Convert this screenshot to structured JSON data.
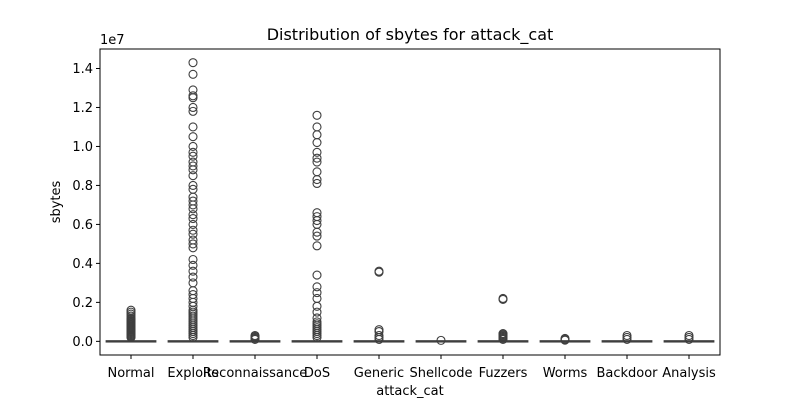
{
  "chart_data": {
    "type": "box",
    "title": "Distribution of sbytes for attack_cat",
    "xlabel": "attack_cat",
    "ylabel": "sbytes",
    "y_scale_label": "1e7",
    "y_scale": 10000000,
    "ylim": [
      -0.07,
      1.5
    ],
    "y_ticks": [
      0.0,
      0.2,
      0.4,
      0.6,
      0.8,
      1.0,
      1.2,
      1.4
    ],
    "y_tick_labels": [
      "0.0",
      "0.2",
      "0.4",
      "0.6",
      "0.8",
      "1.0",
      "1.2",
      "1.4"
    ],
    "grid": false,
    "categories": [
      "Normal",
      "Exploits",
      "Reconnaissance",
      "DoS",
      "Generic",
      "Shellcode",
      "Fuzzers",
      "Worms",
      "Backdoor",
      "Analysis"
    ],
    "box_color": "#4c72b0",
    "series": [
      {
        "category": "Normal",
        "box": [
          0.0,
          0.0,
          0.0,
          0.0,
          0.01
        ],
        "outliers": [
          0.02,
          0.025,
          0.03,
          0.035,
          0.04,
          0.045,
          0.05,
          0.055,
          0.06,
          0.065,
          0.07,
          0.075,
          0.08,
          0.085,
          0.09,
          0.095,
          0.1,
          0.105,
          0.11,
          0.115,
          0.12,
          0.13,
          0.14,
          0.15,
          0.16
        ]
      },
      {
        "category": "Exploits",
        "box": [
          0.0,
          0.0,
          0.0,
          0.0,
          0.01
        ],
        "outliers": [
          0.02,
          0.03,
          0.04,
          0.05,
          0.06,
          0.07,
          0.08,
          0.09,
          0.1,
          0.11,
          0.12,
          0.13,
          0.14,
          0.15,
          0.16,
          0.18,
          0.2,
          0.22,
          0.24,
          0.26,
          0.3,
          0.33,
          0.36,
          0.39,
          0.42,
          0.48,
          0.5,
          0.52,
          0.55,
          0.57,
          0.6,
          0.63,
          0.65,
          0.68,
          0.7,
          0.72,
          0.74,
          0.78,
          0.8,
          0.85,
          0.88,
          0.9,
          0.92,
          0.95,
          0.97,
          1.0,
          1.05,
          1.1,
          1.18,
          1.2,
          1.25,
          1.26,
          1.29,
          1.37,
          1.43
        ]
      },
      {
        "category": "Reconnaissance",
        "box": [
          0.0,
          0.0,
          0.0,
          0.0,
          0.005
        ],
        "outliers": [
          0.01,
          0.015,
          0.02,
          0.025,
          0.03
        ]
      },
      {
        "category": "DoS",
        "box": [
          0.0,
          0.0,
          0.0,
          0.0,
          0.01
        ],
        "outliers": [
          0.02,
          0.03,
          0.04,
          0.05,
          0.06,
          0.07,
          0.08,
          0.09,
          0.1,
          0.12,
          0.15,
          0.18,
          0.22,
          0.25,
          0.28,
          0.34,
          0.49,
          0.54,
          0.56,
          0.6,
          0.62,
          0.64,
          0.66,
          0.81,
          0.83,
          0.87,
          0.92,
          0.94,
          0.97,
          1.02,
          1.06,
          1.1,
          1.16
        ]
      },
      {
        "category": "Generic",
        "box": [
          0.0,
          0.0,
          0.0,
          0.0,
          0.005
        ],
        "outliers": [
          0.01,
          0.02,
          0.03,
          0.05,
          0.06,
          0.355,
          0.36
        ]
      },
      {
        "category": "Shellcode",
        "box": [
          0.0,
          0.0,
          0.0,
          0.0,
          0.002
        ],
        "outliers": [
          0.005
        ]
      },
      {
        "category": "Fuzzers",
        "box": [
          0.0,
          0.0,
          0.0,
          0.0,
          0.005
        ],
        "outliers": [
          0.01,
          0.015,
          0.02,
          0.025,
          0.03,
          0.035,
          0.04,
          0.215,
          0.22
        ]
      },
      {
        "category": "Worms",
        "box": [
          0.0,
          0.0,
          0.0,
          0.0,
          0.003
        ],
        "outliers": [
          0.006,
          0.01,
          0.015
        ]
      },
      {
        "category": "Backdoor",
        "box": [
          0.0,
          0.0,
          0.0,
          0.0,
          0.005
        ],
        "outliers": [
          0.01,
          0.02,
          0.03
        ]
      },
      {
        "category": "Analysis",
        "box": [
          0.0,
          0.0,
          0.0,
          0.0,
          0.005
        ],
        "outliers": [
          0.01,
          0.02,
          0.03
        ]
      }
    ]
  }
}
